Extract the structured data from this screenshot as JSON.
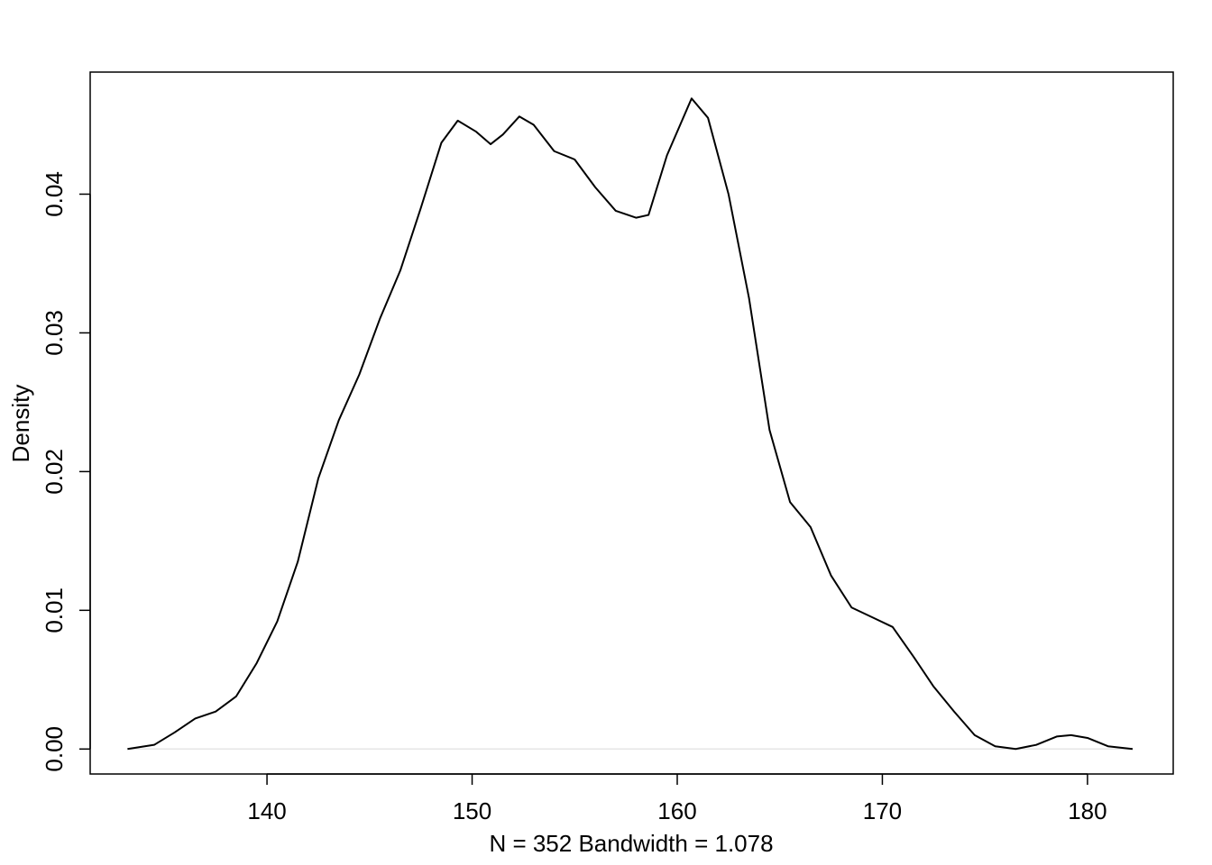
{
  "chart_data": {
    "type": "line",
    "x_label": "N = 352   Bandwidth = 1.078",
    "y_label": "Density",
    "x": [
      133.2,
      134.5,
      135.5,
      136.5,
      137.5,
      138.5,
      139.5,
      140.5,
      141.5,
      142.5,
      143.5,
      144.5,
      145.5,
      146.5,
      147.5,
      148.5,
      149.3,
      150.2,
      150.9,
      151.5,
      152.3,
      153,
      154,
      155,
      156,
      157,
      158,
      158.6,
      159.5,
      160.7,
      161.5,
      162.5,
      163.5,
      164.5,
      165.5,
      166.5,
      167.5,
      168.5,
      169.5,
      170.5,
      171.5,
      172.5,
      173.5,
      174.5,
      175.5,
      176.5,
      177.5,
      178.5,
      179.2,
      180,
      181,
      182.2
    ],
    "series": [
      {
        "color": "#000000",
        "values": [
          0,
          0.0003,
          0.0012,
          0.0022,
          0.0027,
          0.0038,
          0.0062,
          0.0092,
          0.0135,
          0.0195,
          0.0237,
          0.027,
          0.031,
          0.0345,
          0.039,
          0.0437,
          0.0453,
          0.0445,
          0.0436,
          0.0443,
          0.0456,
          0.045,
          0.0431,
          0.0425,
          0.0405,
          0.0388,
          0.0383,
          0.0385,
          0.0428,
          0.0469,
          0.0455,
          0.04,
          0.0325,
          0.023,
          0.0178,
          0.016,
          0.0125,
          0.0102,
          0.0095,
          0.0088,
          0.0067,
          0.0045,
          0.0027,
          0.001,
          0.0002,
          0,
          0.0003,
          0.0009,
          0.001,
          0.0008,
          0.0002,
          0
        ]
      }
    ],
    "xlim": [
      131.38,
      184.18
    ],
    "ylim": [
      -0.0018,
      0.0488
    ],
    "xticks": [
      140,
      150,
      160,
      170,
      180
    ],
    "yticks": [
      {
        "value": 0,
        "label": "0.00"
      },
      0.01,
      0.02,
      0.03,
      0.04
    ],
    "zero_line": true,
    "grid": false
  }
}
